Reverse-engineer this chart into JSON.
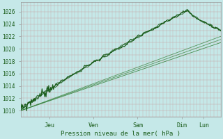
{
  "xlabel": "Pression niveau de la mer( hPa )",
  "bg_color": "#c5e8e8",
  "grid_color": "#c8a8a8",
  "line_dark": "#1a5c1a",
  "line_mid": "#2e7d32",
  "line_light": "#4caf50",
  "ymin": 1009.0,
  "ymax": 1027.5,
  "xmin": 0.0,
  "xmax": 1.0,
  "yticks": [
    1010,
    1012,
    1014,
    1016,
    1018,
    1020,
    1022,
    1024,
    1026
  ],
  "xtick_positions": [
    0.145,
    0.365,
    0.585,
    0.805,
    0.915
  ],
  "xtick_labels": [
    "Jeu",
    "Ven",
    "Sam",
    "Dim",
    "Lun"
  ],
  "n_points": 300,
  "seed": 7
}
